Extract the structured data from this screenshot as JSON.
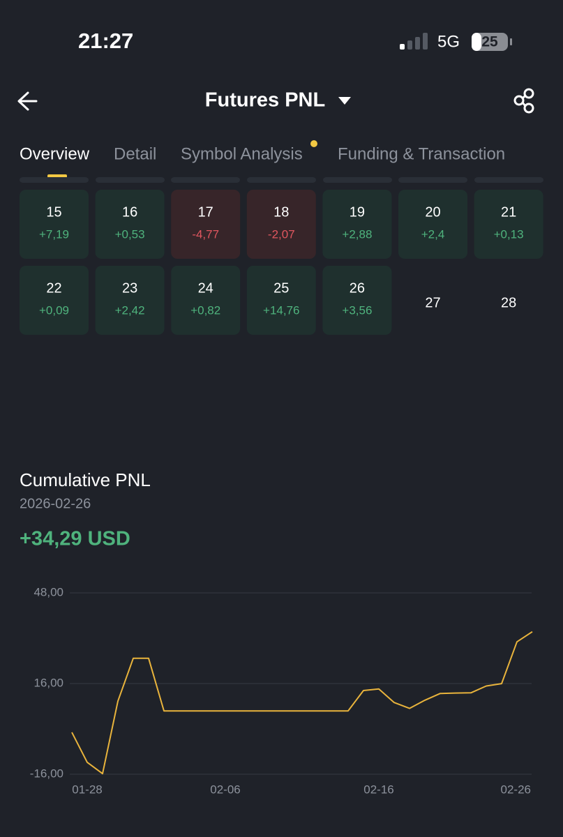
{
  "status_bar": {
    "time": "21:27",
    "network": "5G",
    "battery": "25"
  },
  "header": {
    "title": "Futures PNL"
  },
  "tabs": [
    "Overview",
    "Detail",
    "Symbol Analysis",
    "Funding & Transaction"
  ],
  "calendar": {
    "rows": [
      [
        {
          "day": "15",
          "pnl": "+7,19"
        },
        {
          "day": "16",
          "pnl": "+0,53"
        },
        {
          "day": "17",
          "pnl": "-4,77"
        },
        {
          "day": "18",
          "pnl": "-2,07"
        },
        {
          "day": "19",
          "pnl": "+2,88"
        },
        {
          "day": "20",
          "pnl": "+2,4"
        },
        {
          "day": "21",
          "pnl": "+0,13"
        }
      ],
      [
        {
          "day": "22",
          "pnl": "+0,09"
        },
        {
          "day": "23",
          "pnl": "+2,42"
        },
        {
          "day": "24",
          "pnl": "+0,82"
        },
        {
          "day": "25",
          "pnl": "+14,76"
        },
        {
          "day": "26",
          "pnl": "+3,56"
        },
        {
          "day": "27"
        },
        {
          "day": "28"
        }
      ]
    ]
  },
  "cumulative": {
    "title": "Cumulative PNL",
    "date": "2026-02-26",
    "value": "+34,29 USD"
  },
  "chart_data": {
    "type": "line",
    "color": "#e9b43c",
    "categories": [
      null,
      "01-28",
      null,
      null,
      null,
      null,
      null,
      null,
      null,
      null,
      "02-06",
      null,
      null,
      null,
      null,
      null,
      null,
      null,
      null,
      null,
      "02-16",
      null,
      null,
      null,
      null,
      null,
      null,
      null,
      null,
      null,
      "02-26"
    ],
    "values": [
      -1.2,
      -11.8,
      -15.8,
      9.8,
      24.9,
      24.9,
      6.35,
      6.35,
      6.35,
      6.35,
      6.35,
      6.35,
      6.35,
      6.35,
      6.35,
      6.35,
      6.35,
      6.35,
      6.35,
      13.54,
      14.07,
      9.3,
      7.23,
      10.11,
      12.51,
      12.64,
      12.73,
      15.15,
      15.97,
      30.73,
      34.29
    ],
    "ylim": [
      -16,
      48
    ],
    "yticks": [
      {
        "value": -16,
        "label": "-16,00"
      },
      {
        "value": 16,
        "label": "16,00"
      },
      {
        "value": 48,
        "label": "48,00"
      }
    ],
    "grid": true
  }
}
